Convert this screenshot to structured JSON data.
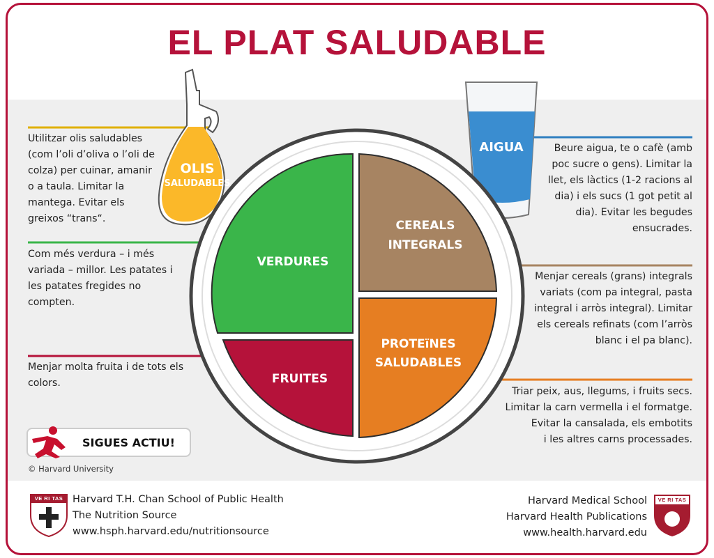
{
  "title": "EL PLAT SALUDABLE",
  "sections": {
    "oils": {
      "label_line1": "OLIS",
      "label_line2": "SALUDABLES",
      "text": [
        "Utilitzar olis saludables",
        "(com l’oli d’oliva o l’oli de",
        "colza) per cuinar, amanir",
        "o a taula. Limitar la",
        "mantega. Evitar els",
        "greixos “trans“."
      ],
      "color": "#f7b500"
    },
    "water": {
      "label": "AIGUA",
      "text": [
        "Beure aigua, te o cafè (amb",
        "poc sucre o gens). Limitar la",
        "llet, els làctics (1-2 racions al",
        "dia) i els sucs (1 got petit al",
        "dia). Evitar les begudes",
        "ensucrades."
      ],
      "color": "#3a8dd0"
    },
    "vegetables": {
      "label": "VERDURES",
      "text": [
        "Com més verdura – i més",
        "variada – millor. Les patates i",
        "les patates fregides no",
        "compten."
      ],
      "color": "#3ab54a"
    },
    "grains": {
      "label_line1": "CEREALS",
      "label_line2": "INTEGRALS",
      "text": [
        "Menjar cereals (grans) integrals",
        "variats (com pa integral, pasta",
        "integral i arròs integral). Limitar",
        "els cereals refinats (com l’arròs",
        "blanc i el pa blanc)."
      ],
      "color": "#a78462"
    },
    "fruits": {
      "label": "FRUITES",
      "text": [
        "Menjar molta fruita i de tots els",
        "colors."
      ],
      "color": "#b5123a"
    },
    "protein": {
      "label_line1": "PROTEïNES",
      "label_line2": "SALUDABLES",
      "text": [
        "Triar peix, aus, llegums, i fruits secs.",
        "Limitar la carn vermella i el formatge.",
        "Evitar la cansalada, els embotits",
        "i les altres carns processades."
      ],
      "color": "#e67e22"
    }
  },
  "active_badge": "SIGUES ACTIU!",
  "copyright": "© Harvard University",
  "footer_left": [
    "Harvard T.H. Chan School of Public Health",
    "The Nutrition Source",
    "www.hsph.harvard.edu/nutritionsource"
  ],
  "footer_right": [
    "Harvard Medical School",
    "Harvard Health Publications",
    "www.health.harvard.edu"
  ],
  "shield_text": "VE RI TAS"
}
